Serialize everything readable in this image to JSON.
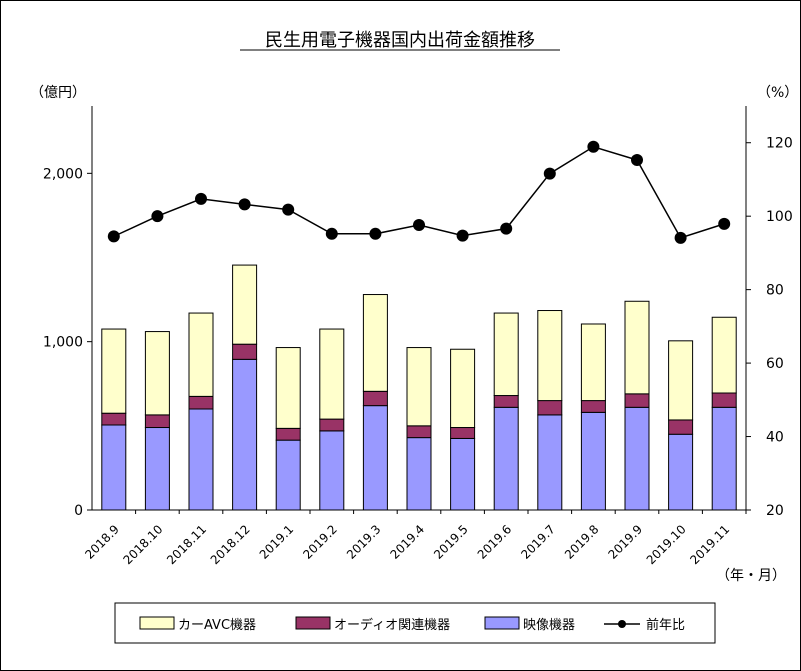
{
  "chart_data": {
    "type": "bar",
    "stacked": true,
    "title": "民生用電子機器国内出荷金額推移",
    "ylabel_left": "（億円）",
    "ylabel_right": "（%）",
    "xlabel": "（年・月）",
    "ylim_left": [
      0,
      2400
    ],
    "yticks_left": [
      0,
      1000,
      2000
    ],
    "yticklabels_left": [
      "0",
      "1,000",
      "2,000"
    ],
    "ylim_right": [
      20,
      130
    ],
    "yticks_right": [
      20,
      40,
      60,
      80,
      100,
      120
    ],
    "yticklabels_right": [
      "20",
      "40",
      "60",
      "80",
      "100",
      "120"
    ],
    "categories": [
      "2018.9",
      "2018.10",
      "2018.11",
      "2018.12",
      "2019.1",
      "2019.2",
      "2019.3",
      "2019.4",
      "2019.5",
      "2019.6",
      "2019.7",
      "2019.8",
      "2019.9",
      "2019.10",
      "2019.11"
    ],
    "series": [
      {
        "name": "映像機器",
        "axis": "left",
        "color": "#9999ff",
        "values": [
          505,
          490,
          600,
          895,
          415,
          470,
          620,
          430,
          425,
          610,
          565,
          580,
          610,
          450,
          610
        ]
      },
      {
        "name": "オーディオ関連機器",
        "axis": "left",
        "color": "#993366",
        "values": [
          70,
          75,
          75,
          90,
          70,
          70,
          85,
          70,
          65,
          70,
          85,
          70,
          80,
          85,
          85
        ]
      },
      {
        "name": "カーAVC機器",
        "axis": "left",
        "color": "#ffffcc",
        "values": [
          500,
          495,
          495,
          470,
          480,
          535,
          575,
          465,
          465,
          490,
          535,
          455,
          550,
          470,
          450
        ]
      },
      {
        "name": "前年比",
        "axis": "right",
        "type": "line",
        "color": "#000000",
        "values": [
          94.5,
          100.0,
          104.7,
          103.2,
          101.8,
          95.2,
          95.2,
          97.6,
          94.7,
          96.6,
          111.6,
          118.9,
          115.3,
          94.1,
          97.9
        ]
      }
    ],
    "legend": {
      "position": "bottom",
      "items": [
        "カーAVC機器",
        "オーディオ関連機器",
        "映像機器",
        "前年比"
      ]
    },
    "grid": false
  }
}
